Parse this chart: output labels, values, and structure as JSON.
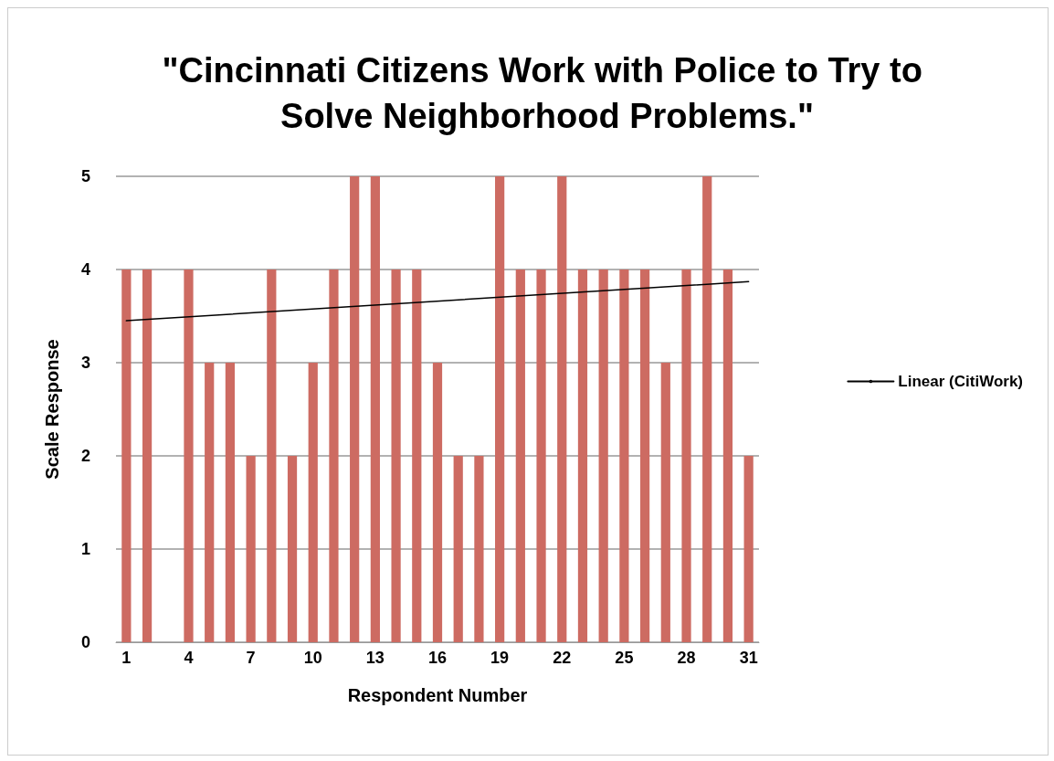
{
  "chart_data": {
    "type": "bar",
    "title": "\"Cincinnati Citizens Work with Police to Try to Solve Neighborhood Problems.\"",
    "xlabel": "Respondent Number",
    "ylabel": "Scale Response",
    "categories": [
      "1",
      null,
      null,
      "4",
      null,
      null,
      "7",
      null,
      null,
      "10",
      null,
      null,
      "13",
      null,
      null,
      "16",
      null,
      null,
      "19",
      null,
      null,
      "22",
      null,
      null,
      "25",
      null,
      null,
      "28",
      null,
      null,
      "31"
    ],
    "series": [
      {
        "color": "#cd6b62",
        "values": [
          4,
          4,
          null,
          4,
          3,
          3,
          2,
          4,
          2,
          3,
          4,
          5,
          5,
          4,
          4,
          3,
          2,
          2,
          5,
          4,
          4,
          5,
          4,
          4,
          4,
          4,
          3,
          4,
          5,
          4,
          2
        ]
      },
      {
        "type": "line",
        "name": "Linear (CitiWork)",
        "color": "#000000",
        "values": [
          3.45,
          null,
          null,
          null,
          null,
          null,
          null,
          null,
          null,
          null,
          null,
          null,
          null,
          null,
          null,
          null,
          null,
          null,
          null,
          null,
          null,
          null,
          null,
          null,
          null,
          null,
          null,
          null,
          null,
          null,
          3.87
        ]
      }
    ],
    "ylim": [
      0,
      5
    ],
    "yticks": [
      0,
      1,
      2,
      3,
      4,
      5
    ],
    "grid": "y",
    "legend": "right"
  }
}
